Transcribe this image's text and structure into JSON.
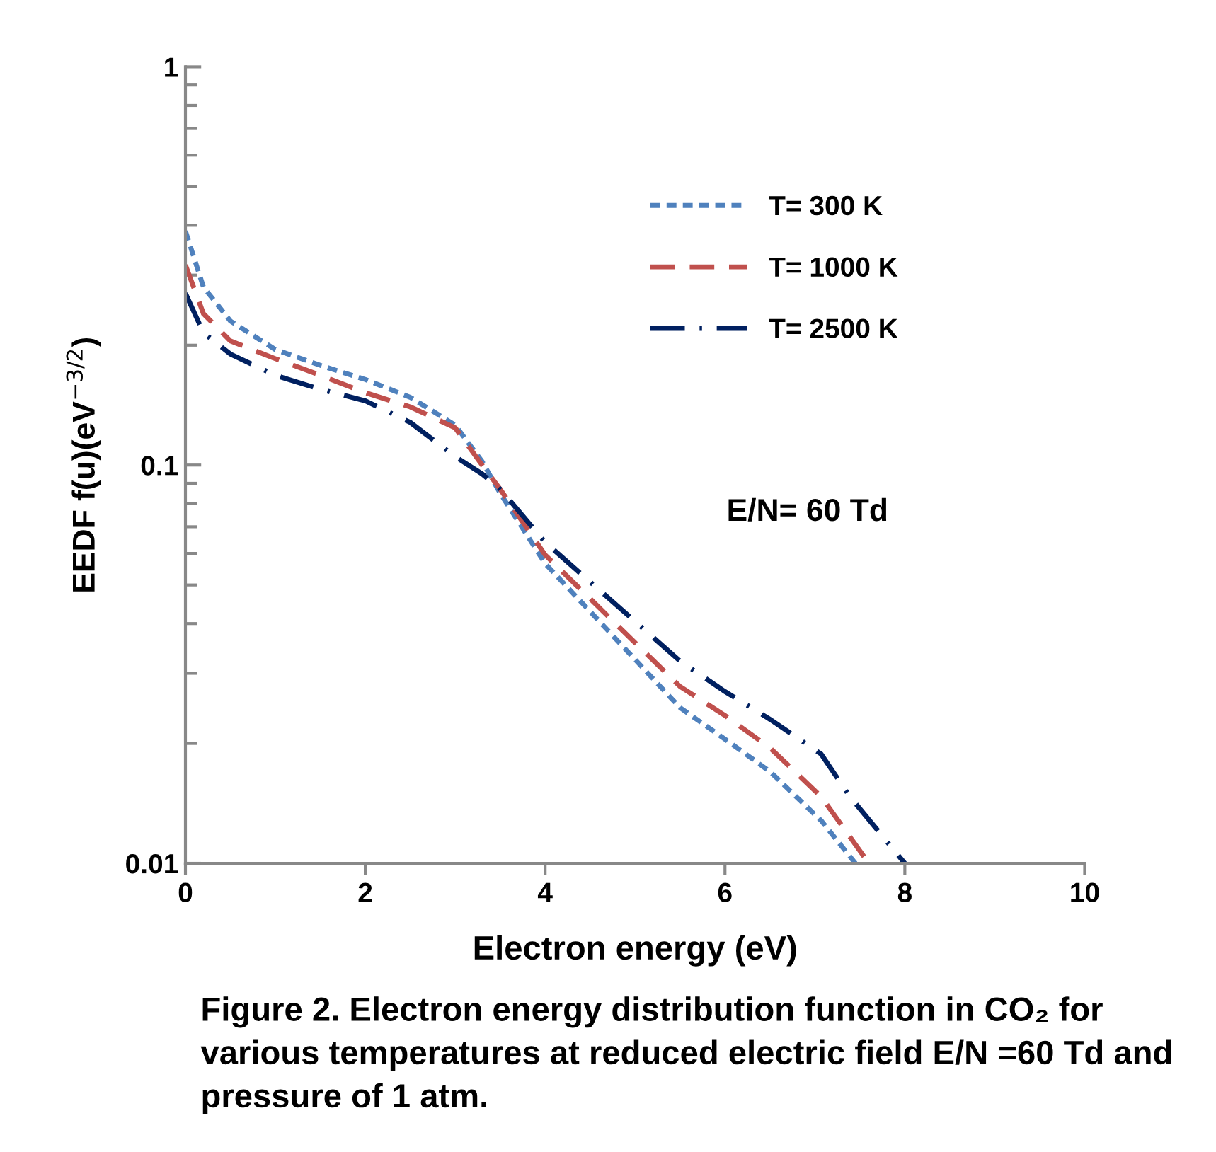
{
  "chart_data": {
    "type": "line",
    "xlabel": "Electron energy (eV)",
    "ylabel": "EEDF f(u)(eV$^{−3/2}$)",
    "log": "y",
    "xlim": [
      0,
      10
    ],
    "xticks": [
      0,
      2,
      4,
      6,
      8,
      10
    ],
    "ylim": [
      0.01,
      1
    ],
    "yticks": [
      0.01,
      0.1,
      1
    ],
    "grid": false,
    "legend": "top right",
    "series": [
      {
        "name": "T= 300 K",
        "color": "#4f81bd",
        "line_style": "dotted",
        "x": [
          0,
          0.2,
          0.5,
          1,
          1.5,
          2,
          2.5,
          3,
          3.3,
          3.5,
          4,
          4.5,
          5,
          5.5,
          6,
          6.5,
          7.07,
          7.45
        ],
        "values": [
          0.387,
          0.28,
          0.23,
          0.195,
          0.178,
          0.164,
          0.148,
          0.126,
          0.102,
          0.085,
          0.0566,
          0.0429,
          0.0325,
          0.0246,
          0.0205,
          0.017,
          0.0128,
          0.01
        ]
      },
      {
        "name": "T= 1000 K",
        "color": "#c0504d",
        "line_style": "dashed",
        "x": [
          0,
          0.2,
          0.5,
          1,
          1.5,
          2,
          2.5,
          3,
          3.3,
          3.5,
          4,
          4.5,
          5,
          5.5,
          6,
          6.5,
          7.07,
          7.6
        ],
        "values": [
          0.318,
          0.24,
          0.205,
          0.185,
          0.168,
          0.152,
          0.14,
          0.124,
          0.1,
          0.087,
          0.0595,
          0.0462,
          0.0358,
          0.0278,
          0.0235,
          0.0195,
          0.0147,
          0.01
        ]
      },
      {
        "name": "T= 2500 K",
        "color": "#002060",
        "line_style": "dashdot",
        "x": [
          0,
          0.2,
          0.5,
          1,
          1.5,
          2,
          2.5,
          3,
          3.3,
          3.5,
          4,
          4.5,
          5,
          5.5,
          6,
          6.5,
          7.07,
          7.39,
          8.0
        ],
        "values": [
          0.27,
          0.215,
          0.19,
          0.168,
          0.155,
          0.145,
          0.128,
          0.105,
          0.095,
          0.087,
          0.064,
          0.0509,
          0.0405,
          0.0322,
          0.027,
          0.023,
          0.0188,
          0.0147,
          0.01
        ]
      }
    ],
    "annotations": [
      "E/N= 60 Td",
      "Figure 2. Electron energy distribution function in CO₂ for various temperatures at reduced electric field E/N =60 Td and pressure of 1 atm."
    ]
  }
}
